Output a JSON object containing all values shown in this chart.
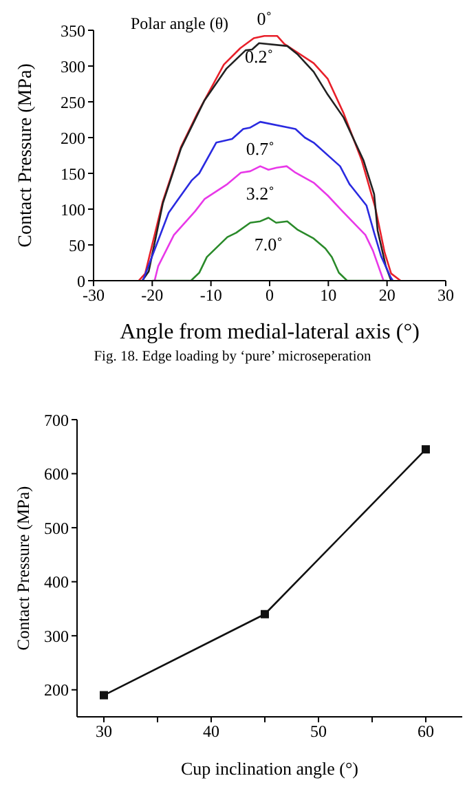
{
  "chart_data": [
    {
      "type": "line",
      "xlabel": "Angle from medial-lateral axis (°)",
      "ylabel": "Contact Pressure (MPa)",
      "legend_title": "Polar angle (θ)",
      "xlim": [
        -30,
        30
      ],
      "xticks": [
        -30,
        -20,
        -10,
        0,
        10,
        20,
        30
      ],
      "ylim": [
        0,
        350
      ],
      "yticks": [
        0,
        50,
        100,
        150,
        200,
        250,
        300,
        350
      ],
      "annotations": [
        "Fig. 18. Edge loading by ‘pure’ microseperation"
      ],
      "series": [
        {
          "name": "0˚",
          "color": "#e8202a",
          "x": [
            -22.3,
            -21.2,
            -18.2,
            -15.1,
            -12.3,
            -7.8,
            -5,
            -2.7,
            -0.9,
            1.3,
            2.5,
            7.5,
            9.9,
            12.6,
            15.7,
            18,
            19.6,
            20.7,
            22.3
          ],
          "values": [
            0,
            10,
            111,
            187,
            234,
            302,
            325,
            339,
            342,
            342,
            331,
            304,
            282,
            234,
            168,
            102,
            39,
            10,
            0
          ]
        },
        {
          "name": "0.2˚",
          "color": "#222222",
          "x": [
            -21.7,
            -20.6,
            -18.2,
            -15.1,
            -11.1,
            -7.4,
            -4.1,
            -3,
            -1.8,
            3,
            4.8,
            7.5,
            9.9,
            12.6,
            16,
            17.8,
            18.4,
            19.8,
            20.7
          ],
          "values": [
            0,
            13,
            108,
            185,
            252,
            296,
            322,
            323,
            332,
            328,
            316,
            292,
            260,
            228,
            168,
            121,
            70,
            20,
            0
          ]
        },
        {
          "name": "0.7˚",
          "color": "#2a2ae0",
          "x": [
            -21.6,
            -20.4,
            -17.2,
            -13.3,
            -12,
            -9.1,
            -6.4,
            -4.5,
            -3.3,
            -1.6,
            4.4,
            6,
            7.5,
            12,
            13.6,
            16.5,
            17.8,
            19,
            20.6,
            21
          ],
          "values": [
            0,
            26,
            95,
            140,
            150,
            193,
            198,
            212,
            214,
            222,
            212,
            200,
            193,
            160,
            135,
            105,
            67,
            34,
            5,
            0
          ]
        },
        {
          "name": "3.2˚",
          "color": "#e838e8",
          "x": [
            -19.6,
            -19,
            -16.3,
            -12.7,
            -11.1,
            -7.2,
            -4.9,
            -3.3,
            -1.6,
            -0.2,
            1.2,
            2.9,
            4.4,
            7.5,
            9.9,
            12.3,
            16.3,
            17.6,
            19.4
          ],
          "values": [
            0,
            20,
            64,
            97,
            114,
            135,
            151,
            153,
            160,
            155,
            158,
            160,
            151,
            137,
            119,
            98,
            64,
            42,
            0
          ]
        },
        {
          "name": "7.0˚",
          "color": "#2a8a2a",
          "x": [
            -20,
            -13.4,
            -12,
            -10.7,
            -7.2,
            -5.7,
            -3.3,
            -1.6,
            -0.2,
            1.1,
            3,
            4.8,
            7.5,
            9.5,
            10.6,
            11.8,
            13.2,
            20
          ],
          "values": [
            0,
            0,
            11,
            33,
            61,
            67,
            81,
            83,
            88,
            81,
            83,
            71,
            59,
            45,
            33,
            11,
            0,
            0
          ]
        }
      ]
    },
    {
      "type": "line",
      "xlabel": "Cup inclination angle (°)",
      "ylabel": "Contact Pressure (MPa)",
      "xlim": [
        27.5,
        63.4
      ],
      "xticks": [
        30,
        {
          "value": 35,
          "label": null
        },
        40,
        {
          "value": 45,
          "label": null
        },
        50,
        {
          "value": 55,
          "label": null
        },
        60
      ],
      "ylim": [
        150,
        700
      ],
      "yticks": [
        200,
        300,
        400,
        500,
        600,
        700
      ],
      "marker": "square",
      "series": [
        {
          "color": "#111111",
          "x": [
            30,
            45,
            60
          ],
          "values": [
            190,
            340,
            645
          ]
        }
      ]
    }
  ]
}
